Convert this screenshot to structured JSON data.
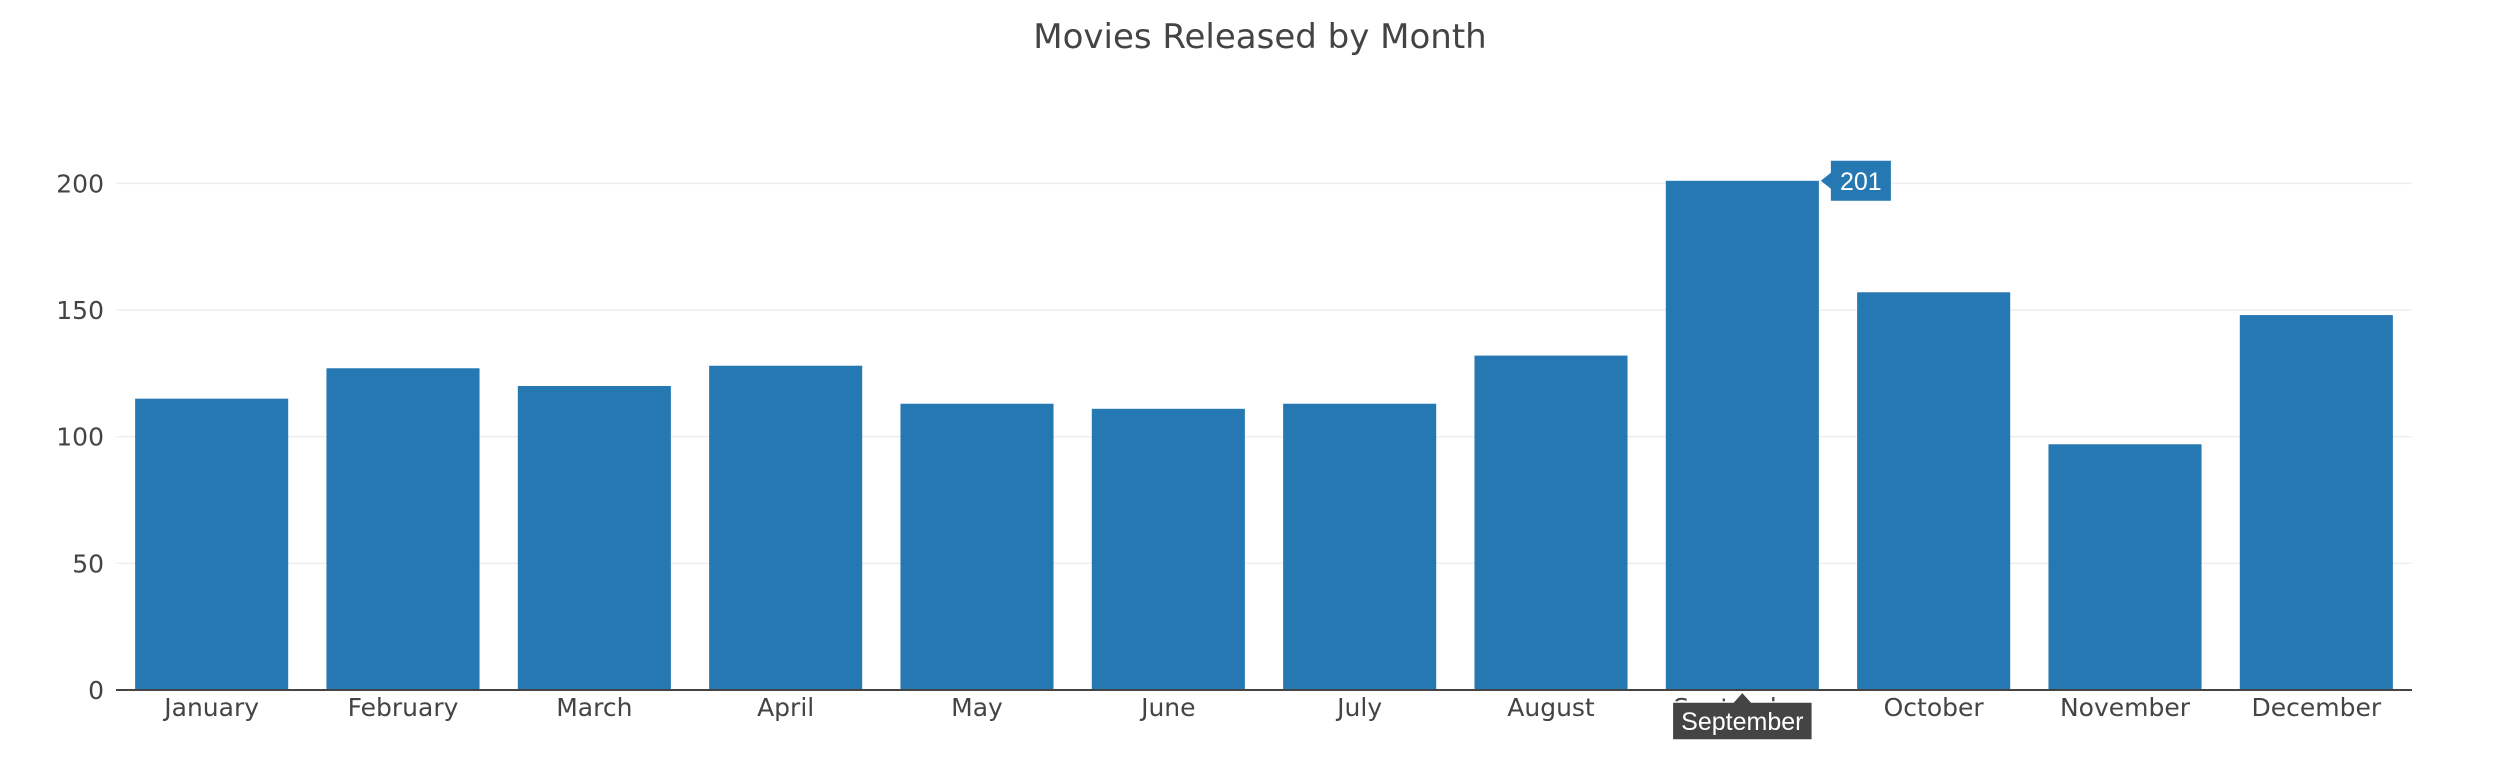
{
  "chart_data": {
    "type": "bar",
    "title": "Movies Released by Month",
    "categories": [
      "January",
      "February",
      "March",
      "April",
      "May",
      "June",
      "July",
      "August",
      "September",
      "October",
      "November",
      "December"
    ],
    "values": [
      115,
      127,
      120,
      128,
      113,
      111,
      113,
      132,
      201,
      157,
      97,
      148
    ],
    "y_ticks": [
      0,
      50,
      100,
      150,
      200
    ],
    "ylim": [
      0,
      225
    ],
    "xlabel": "",
    "ylabel": "",
    "grid": true,
    "bar_color": "#2678b2",
    "hover": {
      "category": "September",
      "value_label": "201",
      "category_label": "September"
    }
  }
}
